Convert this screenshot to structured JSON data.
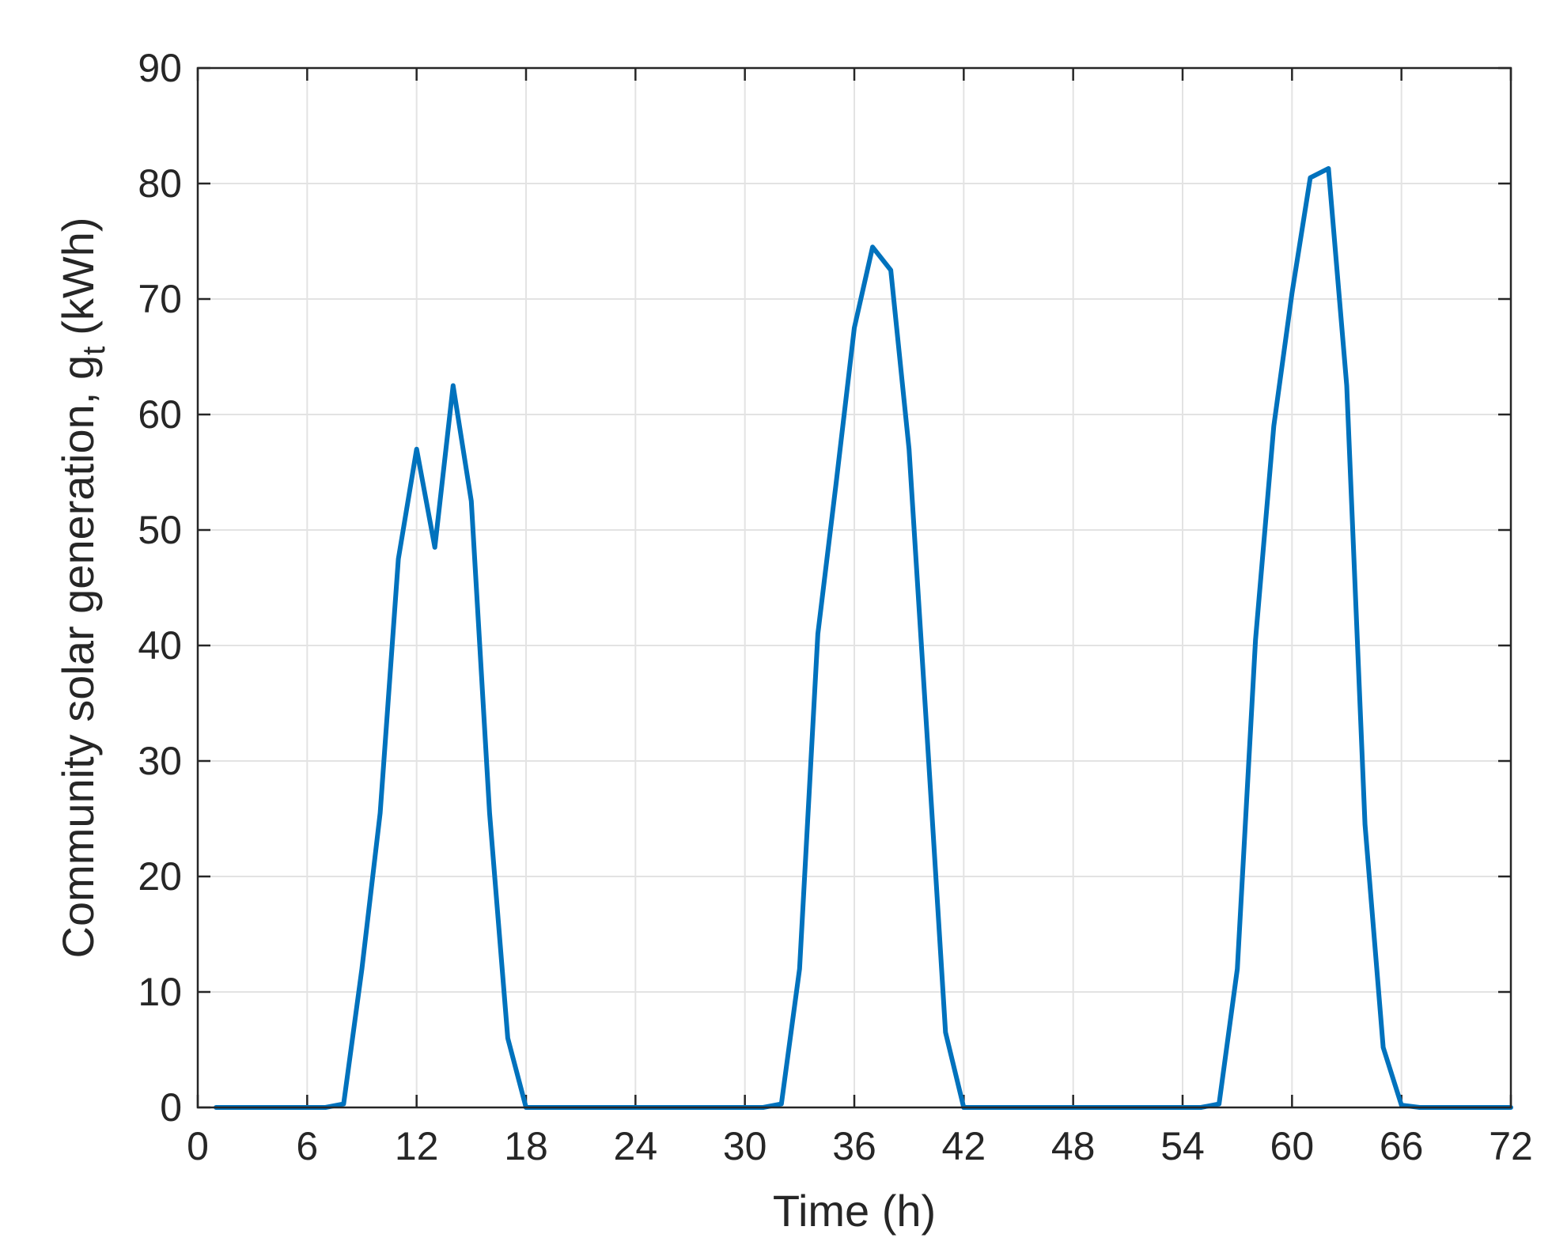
{
  "chart_data": {
    "type": "line",
    "xlabel": "Time (h)",
    "ylabel_main": "Community solar generation, g",
    "ylabel_sub": "t",
    "ylabel_unit": "(kWh)",
    "xlim": [
      0,
      72
    ],
    "ylim": [
      0,
      90
    ],
    "xticks": [
      0,
      6,
      12,
      18,
      24,
      30,
      36,
      42,
      48,
      54,
      60,
      66,
      72
    ],
    "yticks": [
      0,
      10,
      20,
      30,
      40,
      50,
      60,
      70,
      80,
      90
    ],
    "grid": true,
    "series": [
      {
        "color": "#0072BD",
        "x": [
          1,
          2,
          3,
          4,
          5,
          6,
          7,
          8,
          9,
          10,
          11,
          12,
          13,
          14,
          15,
          16,
          17,
          18,
          19,
          20,
          21,
          22,
          23,
          24,
          25,
          26,
          27,
          28,
          29,
          30,
          31,
          32,
          33,
          34,
          35,
          36,
          37,
          38,
          39,
          40,
          41,
          42,
          43,
          44,
          45,
          46,
          47,
          48,
          49,
          50,
          51,
          52,
          53,
          54,
          55,
          56,
          57,
          58,
          59,
          60,
          61,
          62,
          63,
          64,
          65,
          66,
          67,
          68,
          69,
          70,
          71,
          72
        ],
        "y": [
          0,
          0,
          0,
          0,
          0,
          0,
          0,
          0.3,
          12,
          25.5,
          47.5,
          57,
          48.5,
          62.5,
          52.5,
          25.5,
          6,
          0,
          0,
          0,
          0,
          0,
          0,
          0,
          0,
          0,
          0,
          0,
          0,
          0,
          0,
          0.3,
          12,
          41,
          54,
          67.5,
          74.5,
          72.5,
          57,
          32,
          6.5,
          0,
          0,
          0,
          0,
          0,
          0,
          0,
          0,
          0,
          0,
          0,
          0,
          0,
          0,
          0.3,
          12,
          40.5,
          59,
          70.5,
          80.5,
          81.3,
          62.5,
          24.5,
          5.2,
          0.2,
          0,
          0,
          0,
          0,
          0,
          0
        ]
      }
    ]
  }
}
